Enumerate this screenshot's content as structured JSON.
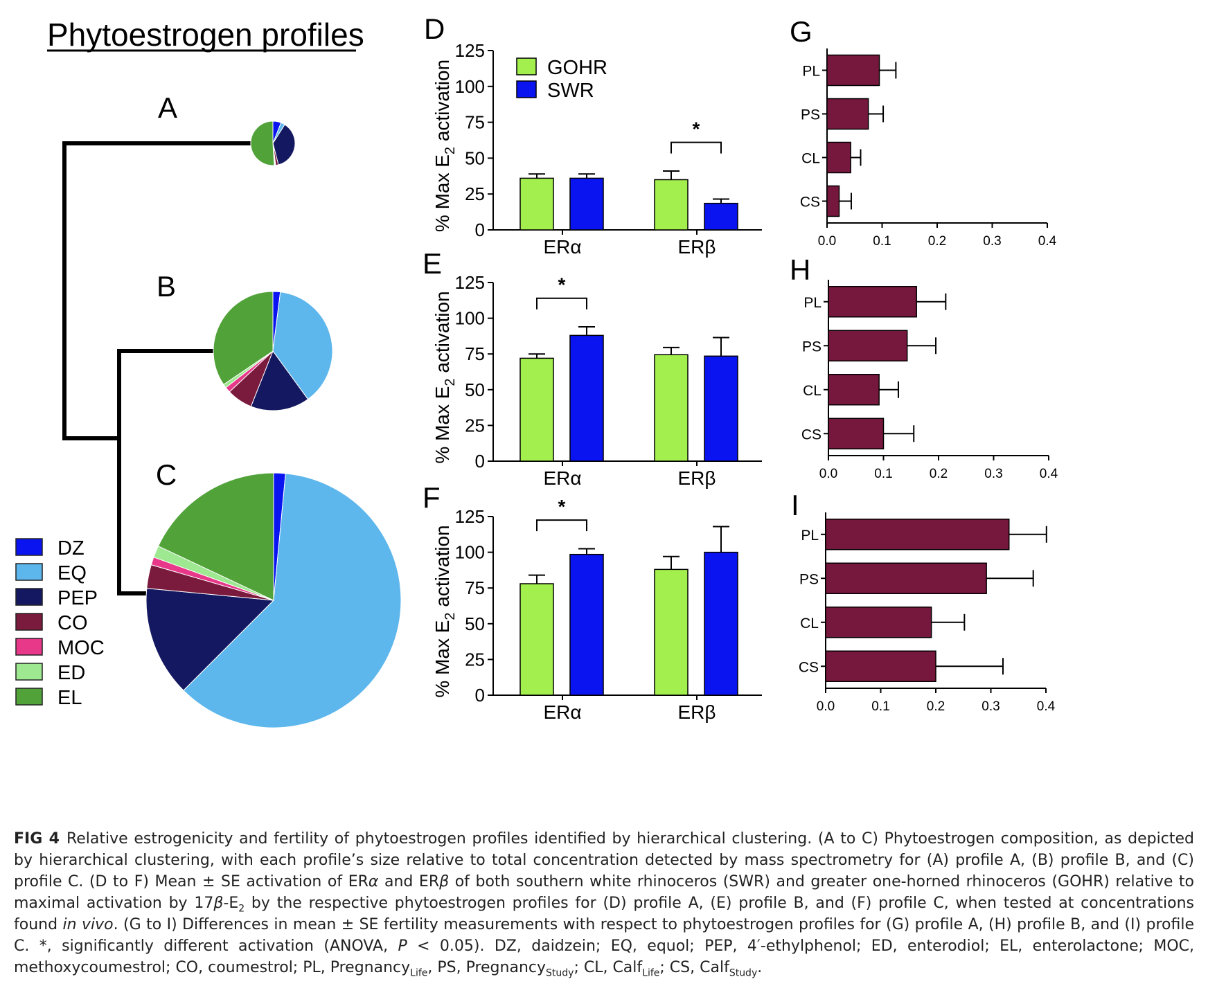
{
  "main_title": "Phytoestrogen profiles",
  "legend_items": [
    {
      "label": "DZ",
      "color": "#0a14f0"
    },
    {
      "label": "EQ",
      "color": "#5db6ec"
    },
    {
      "label": "PEP",
      "color": "#141860"
    },
    {
      "label": "CO",
      "color": "#7a1a3c"
    },
    {
      "label": "MOC",
      "color": "#e8388a"
    },
    {
      "label": "ED",
      "color": "#9de890"
    },
    {
      "label": "EL",
      "color": "#52a23a"
    }
  ],
  "chart_data": [
    {
      "type": "pie",
      "panel": "A",
      "title": "A",
      "slices": [
        {
          "label": "DZ",
          "value": 6
        },
        {
          "label": "EQ",
          "value": 3
        },
        {
          "label": "PEP",
          "value": 37
        },
        {
          "label": "CO",
          "value": 2
        },
        {
          "label": "MOC",
          "value": 0.5
        },
        {
          "label": "ED",
          "value": 0.5
        },
        {
          "label": "EL",
          "value": 51
        }
      ]
    },
    {
      "type": "pie",
      "panel": "B",
      "title": "B",
      "slices": [
        {
          "label": "DZ",
          "value": 2
        },
        {
          "label": "EQ",
          "value": 38
        },
        {
          "label": "PEP",
          "value": 16
        },
        {
          "label": "CO",
          "value": 7
        },
        {
          "label": "MOC",
          "value": 1.5
        },
        {
          "label": "ED",
          "value": 1
        },
        {
          "label": "EL",
          "value": 34.5
        }
      ]
    },
    {
      "type": "pie",
      "panel": "C",
      "title": "C",
      "slices": [
        {
          "label": "DZ",
          "value": 1.5
        },
        {
          "label": "EQ",
          "value": 61
        },
        {
          "label": "PEP",
          "value": 14
        },
        {
          "label": "CO",
          "value": 3
        },
        {
          "label": "MOC",
          "value": 1
        },
        {
          "label": "ED",
          "value": 1.5
        },
        {
          "label": "EL",
          "value": 18
        }
      ]
    },
    {
      "type": "bar",
      "panel": "D",
      "title": "D",
      "categories": [
        "ERα",
        "ERβ"
      ],
      "series": [
        {
          "name": "GOHR",
          "color": "#a3ef4e",
          "values": [
            36,
            35
          ],
          "errors": [
            3,
            6
          ]
        },
        {
          "name": "SWR",
          "color": "#0a14f0",
          "values": [
            36,
            18.5
          ],
          "errors": [
            3,
            3
          ]
        }
      ],
      "ylabel_main": "% Max E",
      "ylabel_sub": "2",
      "ylabel_tail": " activation",
      "ylim": [
        0,
        125
      ],
      "yticks": [
        "0",
        "25",
        "50",
        "75",
        "100",
        "125"
      ],
      "significance": [
        {
          "category_index": 1,
          "label": "*"
        }
      ]
    },
    {
      "type": "bar",
      "panel": "E",
      "title": "E",
      "categories": [
        "ERα",
        "ERβ"
      ],
      "series": [
        {
          "name": "GOHR",
          "color": "#a3ef4e",
          "values": [
            72,
            74.5
          ],
          "errors": [
            3,
            5
          ]
        },
        {
          "name": "SWR",
          "color": "#0a14f0",
          "values": [
            88,
            73.5
          ],
          "errors": [
            6,
            13
          ]
        }
      ],
      "ylabel_main": "% Max E",
      "ylabel_sub": "2",
      "ylabel_tail": " activation",
      "ylim": [
        0,
        125
      ],
      "yticks": [
        "0",
        "25",
        "50",
        "75",
        "100",
        "125"
      ],
      "significance": [
        {
          "category_index": 0,
          "label": "*"
        }
      ]
    },
    {
      "type": "bar",
      "panel": "F",
      "title": "F",
      "categories": [
        "ERα",
        "ERβ"
      ],
      "series": [
        {
          "name": "GOHR",
          "color": "#a3ef4e",
          "values": [
            78,
            88
          ],
          "errors": [
            6,
            9
          ]
        },
        {
          "name": "SWR",
          "color": "#0a14f0",
          "values": [
            98.5,
            100
          ],
          "errors": [
            4,
            18
          ]
        }
      ],
      "ylabel_main": "% Max E",
      "ylabel_sub": "2",
      "ylabel_tail": " activation",
      "ylim": [
        0,
        125
      ],
      "yticks": [
        "0",
        "25",
        "50",
        "75",
        "100",
        "125"
      ],
      "significance": [
        {
          "category_index": 0,
          "label": "*"
        }
      ]
    },
    {
      "type": "bar",
      "orientation": "horizontal",
      "panel": "G",
      "title": "G",
      "categories": [
        "PL",
        "PS",
        "CL",
        "CS"
      ],
      "values": [
        0.095,
        0.075,
        0.043,
        0.022
      ],
      "errors": [
        0.03,
        0.027,
        0.018,
        0.022
      ],
      "xlim": [
        0,
        0.4
      ],
      "xticks": [
        "0.0",
        "0.1",
        "0.2",
        "0.3",
        "0.4"
      ],
      "color": "#76173d"
    },
    {
      "type": "bar",
      "orientation": "horizontal",
      "panel": "H",
      "title": "H",
      "categories": [
        "PL",
        "PS",
        "CL",
        "CS"
      ],
      "values": [
        0.16,
        0.143,
        0.092,
        0.1
      ],
      "errors": [
        0.053,
        0.052,
        0.035,
        0.055
      ],
      "xlim": [
        0,
        0.4
      ],
      "xticks": [
        "0.0",
        "0.1",
        "0.2",
        "0.3",
        "0.4"
      ],
      "color": "#76173d"
    },
    {
      "type": "bar",
      "orientation": "horizontal",
      "panel": "I",
      "title": "I",
      "categories": [
        "PL",
        "PS",
        "CL",
        "CS"
      ],
      "values": [
        0.333,
        0.292,
        0.192,
        0.2
      ],
      "errors": [
        0.068,
        0.085,
        0.06,
        0.122
      ],
      "xlim": [
        0,
        0.4
      ],
      "xticks": [
        "0.0",
        "0.1",
        "0.2",
        "0.3",
        "0.4"
      ],
      "color": "#76173d"
    }
  ],
  "caption": {
    "label": "FIG 4",
    "parts": [
      {
        "t": "Relative estrogenicity and fertility of phytoestrogen profiles identified by hierarchical clustering. (A to C) Phytoestrogen composition, as depicted by hierarchical clustering, with each profile’s size relative to total concentration detected by mass spectrometry for (A) profile A, (B) profile B, and (C) profile C. (D to F) Mean ± SE activation of ER"
      },
      {
        "t": "α",
        "s": "i"
      },
      {
        "t": " and ER"
      },
      {
        "t": "β",
        "s": "i"
      },
      {
        "t": " of both southern white rhinoceros (SWR) and greater one-horned rhinoceros (GOHR) relative to maximal activation by 17"
      },
      {
        "t": "β",
        "s": "i"
      },
      {
        "t": "-E"
      },
      {
        "t": "2",
        "s": "sub"
      },
      {
        "t": " by the respective phytoestrogen profiles for (D) profile A, (E) profile B, and (F) profile C, when tested at concentrations found "
      },
      {
        "t": "in vivo",
        "s": "i"
      },
      {
        "t": ". (G to I) Differences in mean ± SE fertility measurements with respect to phytoestrogen profiles for (G) profile A, (H) profile B, and (I) profile C. *, significantly different activation (ANOVA, "
      },
      {
        "t": "P",
        "s": "i"
      },
      {
        "t": " < 0.05). DZ, daidzein; EQ, equol; PEP, 4′-ethylphenol; ED, enterodiol; EL, enterolactone; MOC, methoxycoumestrol; CO, coumestrol; PL, Pregnancy"
      },
      {
        "t": "Life",
        "s": "sub"
      },
      {
        "t": ", PS, Pregnancy"
      },
      {
        "t": "Study",
        "s": "sub"
      },
      {
        "t": "; CL, Calf"
      },
      {
        "t": "Life",
        "s": "sub"
      },
      {
        "t": "; CS, Calf"
      },
      {
        "t": "Study",
        "s": "sub"
      },
      {
        "t": "."
      }
    ]
  }
}
